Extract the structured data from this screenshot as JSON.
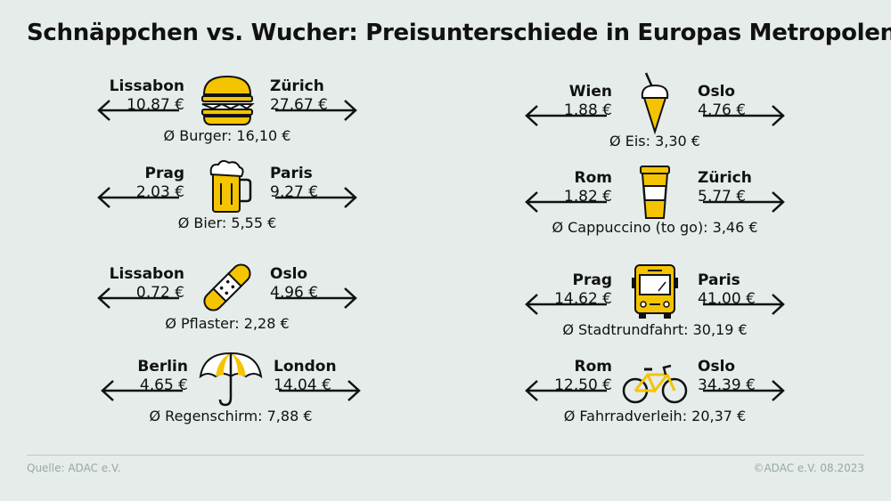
{
  "title": "Schnäppchen vs. Wucher: Preisunterschiede in Europas Metropolen",
  "items": [
    {
      "left_city": "Lissabon",
      "left_price": "10,87 €",
      "right_city": "Zürich",
      "right_price": "27,67 €",
      "average": "Ø Burger: 16,10 €",
      "icon": "burger-icon"
    },
    {
      "left_city": "Prag",
      "left_price": "2,03 €",
      "right_city": "Paris",
      "right_price": "9,27 €",
      "average": "Ø Bier: 5,55 €",
      "icon": "beer-icon"
    },
    {
      "left_city": "Lissabon",
      "left_price": "0,72 €",
      "right_city": "Oslo",
      "right_price": "4,96 €",
      "average": "Ø Pflaster: 2,28 €",
      "icon": "bandage-icon"
    },
    {
      "left_city": "Berlin",
      "left_price": "4,65 €",
      "right_city": "London",
      "right_price": "14,04 €",
      "average": "Ø Regenschirm: 7,88 €",
      "icon": "umbrella-icon"
    },
    {
      "left_city": "Wien",
      "left_price": "1,88 €",
      "right_city": "Oslo",
      "right_price": "4,76 €",
      "average": "Ø Eis: 3,30 €",
      "icon": "ice-cream-icon"
    },
    {
      "left_city": "Rom",
      "left_price": "1,82 €",
      "right_city": "Zürich",
      "right_price": "5,77 €",
      "average": "Ø Cappuccino (to go): 3,46 €",
      "icon": "coffee-cup-icon"
    },
    {
      "left_city": "Prag",
      "left_price": "14,62 €",
      "right_city": "Paris",
      "right_price": "41,00 €",
      "average": "Ø Stadtrundfahrt: 30,19 €",
      "icon": "bus-icon"
    },
    {
      "left_city": "Rom",
      "left_price": "12,50 €",
      "right_city": "Oslo",
      "right_price": "34,39 €",
      "average": "Ø Fahrradverleih: 20,37 €",
      "icon": "bicycle-icon"
    }
  ],
  "footer": {
    "source": "Quelle: ADAC e.V.",
    "copyright": "©ADAC e.V.  08.2023"
  },
  "colors": {
    "accent": "#f5c400",
    "background": "#e5ecea",
    "text": "#111111"
  }
}
